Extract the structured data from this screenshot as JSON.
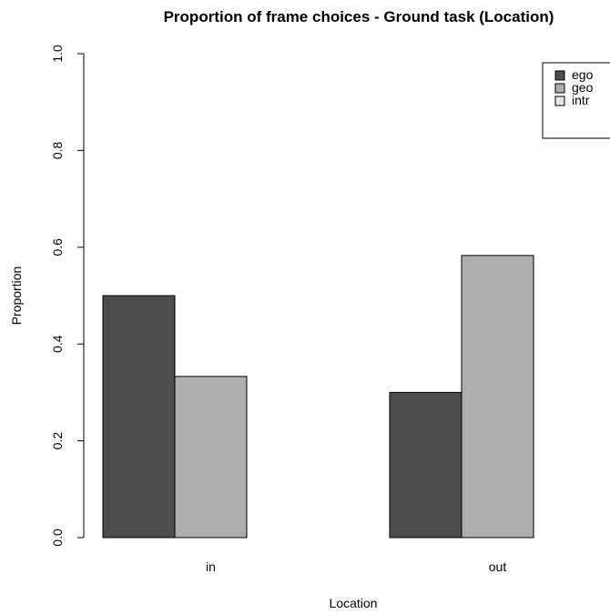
{
  "chart_data": {
    "type": "bar",
    "title": "Proportion of frame choices - Ground task (Location)",
    "xlabel": "Location",
    "ylabel": "Proportion",
    "categories": [
      "in",
      "out"
    ],
    "series": [
      {
        "name": "ego",
        "color": "#4d4d4d",
        "values": [
          0.5,
          0.3
        ]
      },
      {
        "name": "geo",
        "color": "#aeaeae",
        "values": [
          0.333,
          0.583
        ]
      },
      {
        "name": "intr",
        "color": "#e6e6e6",
        "values": [
          0.0,
          0.0
        ]
      }
    ],
    "ylim": [
      0,
      1
    ],
    "yticks": [
      "0.0",
      "0.2",
      "0.4",
      "0.6",
      "0.8",
      "1.0"
    ],
    "grid": false,
    "legend_position": "top-right"
  }
}
